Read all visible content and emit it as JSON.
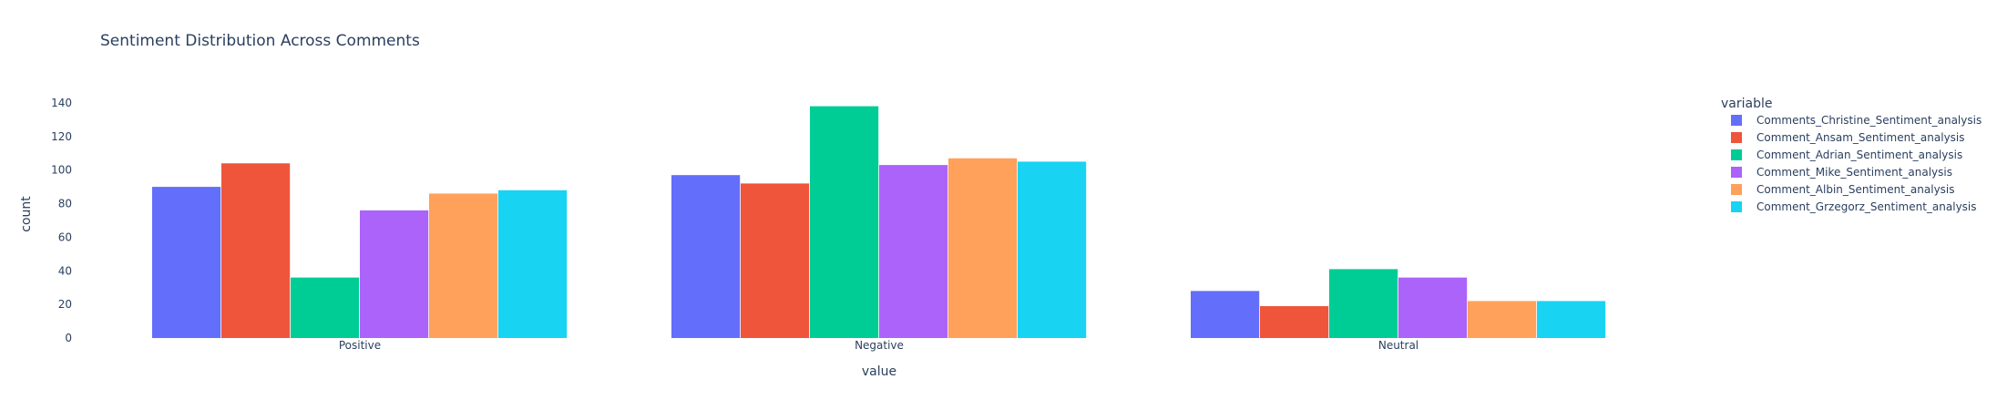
{
  "chart_data": {
    "type": "bar",
    "title": "Sentiment Distribution Across Comments",
    "xlabel": "value",
    "ylabel": "count",
    "categories": [
      "Positive",
      "Negative",
      "Neutral"
    ],
    "ylim": [
      0,
      147
    ],
    "yticks": [
      0,
      20,
      40,
      60,
      80,
      100,
      120,
      140
    ],
    "legend_title": "variable",
    "legend_position": "top-right",
    "grid": false,
    "series": [
      {
        "name": "Comments_Christine_Sentiment_analysis",
        "color": "#636efa",
        "values": [
          90,
          97,
          28
        ]
      },
      {
        "name": "Comment_Ansam_Sentiment_analysis",
        "color": "#ef553b",
        "values": [
          104,
          92,
          19
        ]
      },
      {
        "name": "Comment_Adrian_Sentiment_analysis",
        "color": "#00cc96",
        "values": [
          36,
          138,
          41
        ]
      },
      {
        "name": "Comment_Mike_Sentiment_analysis",
        "color": "#ab63fa",
        "values": [
          76,
          103,
          36
        ]
      },
      {
        "name": "Comment_Albin_Sentiment_analysis",
        "color": "#ffa15a",
        "values": [
          86,
          107,
          22
        ]
      },
      {
        "name": "Comment_Grzegorz_Sentiment_analysis",
        "color": "#19d3f3",
        "values": [
          88,
          105,
          22
        ]
      }
    ]
  }
}
